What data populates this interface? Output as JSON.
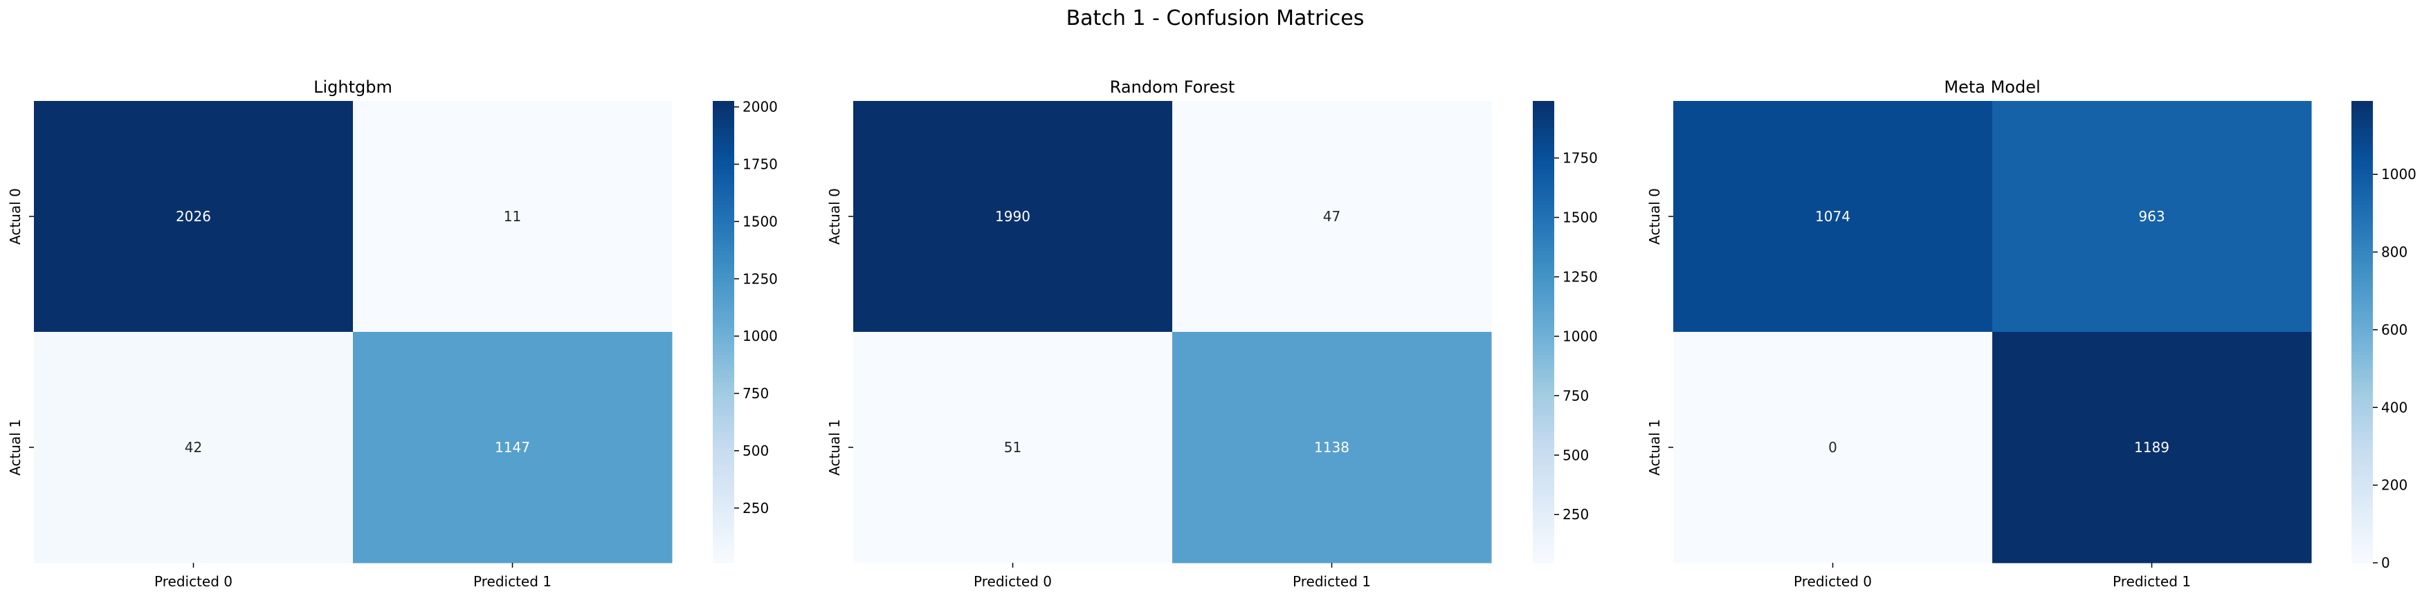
{
  "figure": {
    "suptitle": "Batch 1 - Confusion Matrices",
    "colormap": "Blues",
    "background": "#ffffff"
  },
  "chart_data": [
    {
      "type": "heatmap",
      "title": "Lightgbm",
      "xlabels": [
        "Predicted 0",
        "Predicted 1"
      ],
      "ylabels": [
        "Actual 0",
        "Actual 1"
      ],
      "values": [
        [
          2026,
          11
        ],
        [
          42,
          1147
        ]
      ],
      "vmin": 11,
      "vmax": 2026,
      "colorbar_ticks": [
        250,
        500,
        750,
        1000,
        1250,
        1500,
        1750,
        2000
      ],
      "annotations": true
    },
    {
      "type": "heatmap",
      "title": "Random Forest",
      "xlabels": [
        "Predicted 0",
        "Predicted 1"
      ],
      "ylabels": [
        "Actual 0",
        "Actual 1"
      ],
      "values": [
        [
          1990,
          47
        ],
        [
          51,
          1138
        ]
      ],
      "vmin": 47,
      "vmax": 1990,
      "colorbar_ticks": [
        250,
        500,
        750,
        1000,
        1250,
        1500,
        1750
      ],
      "annotations": true
    },
    {
      "type": "heatmap",
      "title": "Meta Model",
      "xlabels": [
        "Predicted 0",
        "Predicted 1"
      ],
      "ylabels": [
        "Actual 0",
        "Actual 1"
      ],
      "values": [
        [
          1074,
          963
        ],
        [
          0,
          1189
        ]
      ],
      "vmin": 0,
      "vmax": 1189,
      "colorbar_ticks": [
        0,
        200,
        400,
        600,
        800,
        1000
      ],
      "annotations": true
    }
  ]
}
